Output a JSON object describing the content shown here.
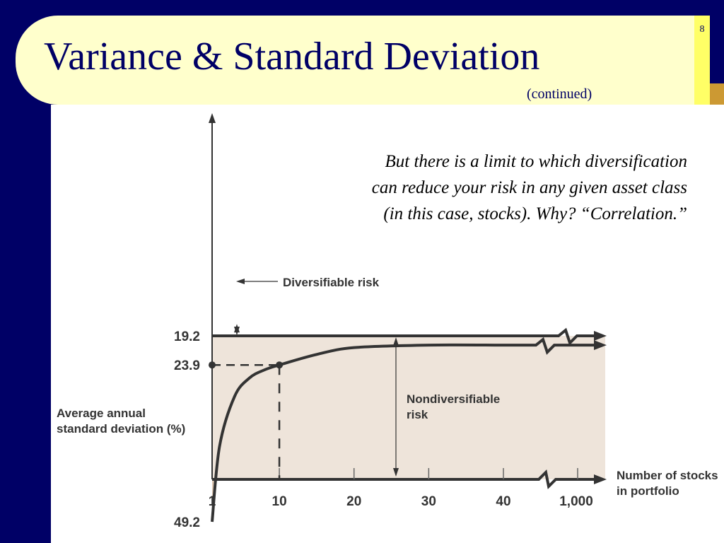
{
  "slide": {
    "title": "Variance & Standard Deviation",
    "subtitle": "(continued)",
    "number": "8",
    "annotation": "But there is a limit to which diversification\ncan reduce your risk in any given asset class\n(in this case, stocks).  Why?  “Correlation.”"
  },
  "colors": {
    "navy": "#000066",
    "title_bg": "#ffffcc",
    "title_strip": "#ffff66",
    "diversifiable_fill": "#ddc7b2",
    "nondiversifiable_fill": "#eee4da",
    "ink": "#333333"
  },
  "chart_data": {
    "type": "area",
    "xlabel": "Number of stocks\nin portfolio",
    "ylabel": "Average annual\nstandard deviation (%)",
    "x_ticks": [
      "1",
      "10",
      "20",
      "30",
      "40",
      "1,000"
    ],
    "y_ticks": [
      "49.2",
      "23.9",
      "19.2"
    ],
    "x_axis_break": "after 40",
    "series": [
      {
        "x": [
          1,
          2,
          4,
          6,
          8,
          10,
          15,
          20,
          30,
          40,
          1000
        ],
        "values": [
          49.2,
          37.0,
          29.0,
          26.0,
          24.7,
          23.9,
          22.2,
          21.1,
          20.7,
          20.7,
          19.2
        ]
      }
    ],
    "reference_lines": [
      {
        "y": 19.2
      },
      {
        "x": 10,
        "y": 23.9,
        "style": "dashed"
      }
    ],
    "annotations": [
      {
        "text": "Diversifiable risk"
      },
      {
        "text": "Nondiversifiable\nrisk"
      }
    ]
  }
}
